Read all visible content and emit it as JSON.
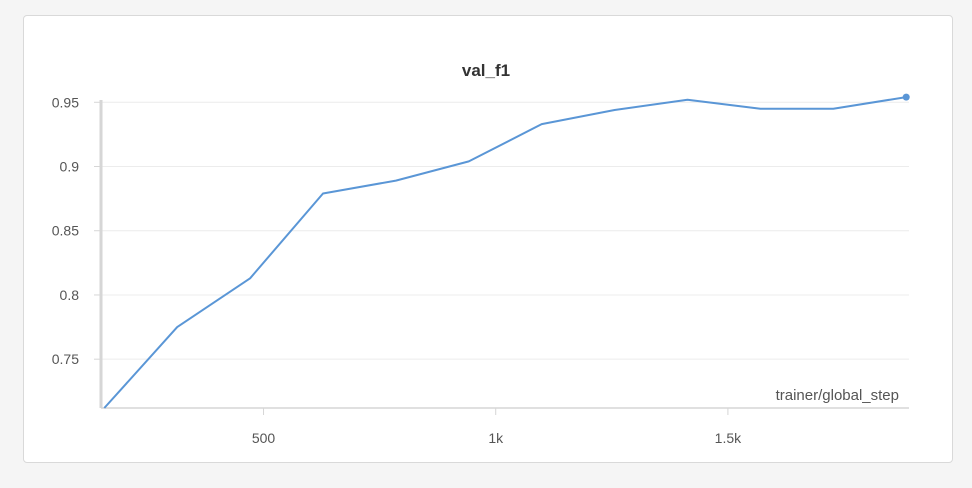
{
  "chart_data": {
    "type": "line",
    "title": "val_f1",
    "xlabel": "trainer/global_step",
    "ylabel": "",
    "xlim": [
      150,
      1890
    ],
    "ylim": [
      0.712,
      0.958
    ],
    "x_ticks": [
      {
        "value": 500,
        "label": "500"
      },
      {
        "value": 1000,
        "label": "1k"
      },
      {
        "value": 1500,
        "label": "1.5k"
      }
    ],
    "y_ticks": [
      {
        "value": 0.75,
        "label": "0.75"
      },
      {
        "value": 0.8,
        "label": "0.8"
      },
      {
        "value": 0.85,
        "label": "0.85"
      },
      {
        "value": 0.9,
        "label": "0.9"
      },
      {
        "value": 0.95,
        "label": "0.95"
      }
    ],
    "grid": true,
    "legend": "none",
    "series": [
      {
        "color": "#5a96d6",
        "x": [
          157,
          314,
          471,
          628,
          785,
          942,
          1099,
          1256,
          1413,
          1570,
          1727,
          1884
        ],
        "y": [
          0.712,
          0.775,
          0.813,
          0.879,
          0.889,
          0.904,
          0.933,
          0.944,
          0.952,
          0.945,
          0.945,
          0.954
        ]
      }
    ]
  }
}
